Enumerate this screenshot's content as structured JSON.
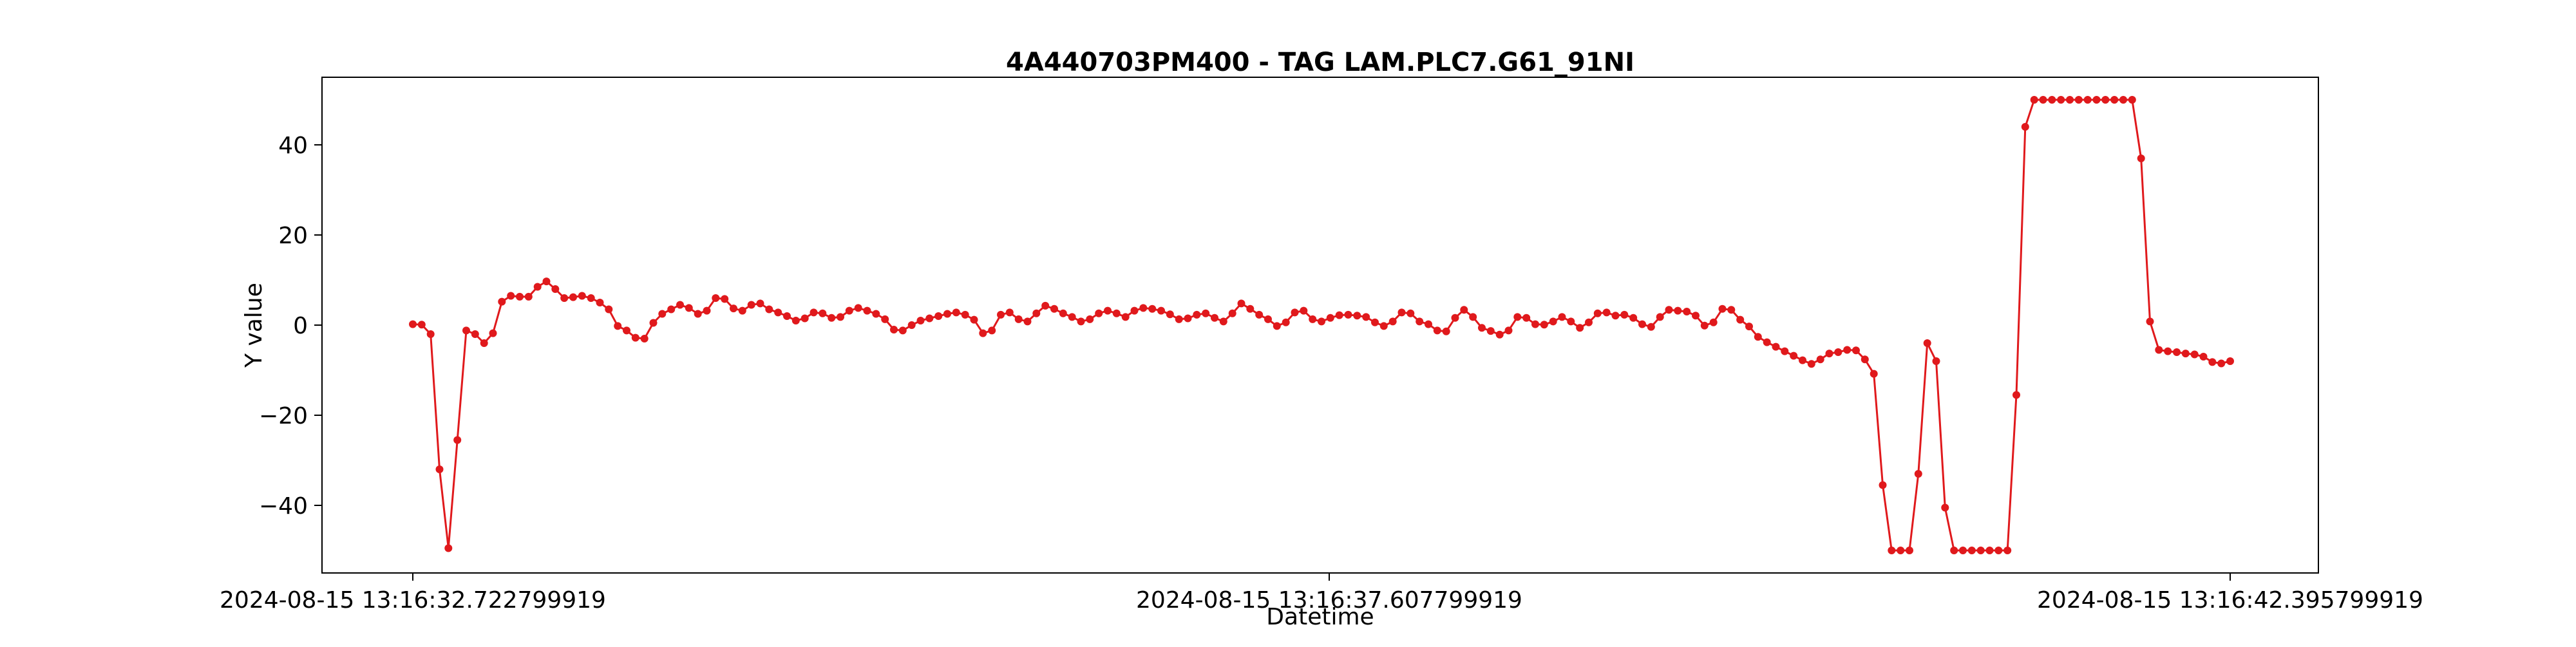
{
  "chart_data": {
    "type": "line",
    "title": "4A440703PM400 - TAG LAM.PLC7.G61_91NI",
    "xlabel": "Datetime",
    "ylabel": "Y value",
    "ylim": [
      -55,
      55
    ],
    "yticks": [
      -40,
      -20,
      0,
      20,
      40
    ],
    "xtick_labels": [
      "2024-08-15 13:16:32.722799919",
      "2024-08-15 13:16:37.607799919",
      "2024-08-15 13:16:42.395799919"
    ],
    "grid": false,
    "legend": "none",
    "series": [
      {
        "color": "#e0191c",
        "marker": "circle",
        "values": [
          0.2,
          0.1,
          -2,
          -32,
          -49.5,
          -25.5,
          -1.2,
          -2,
          -4,
          -1.8,
          5.2,
          6.5,
          6.3,
          6.3,
          8.5,
          9.7,
          8,
          6,
          6.2,
          6.5,
          6,
          5,
          3.5,
          -0.2,
          -1.2,
          -2.8,
          -3,
          0.5,
          2.5,
          3.5,
          4.5,
          3.8,
          2.5,
          3.2,
          6,
          5.8,
          3.7,
          3.2,
          4.5,
          4.8,
          3.5,
          2.8,
          2,
          1,
          1.5,
          2.8,
          2.6,
          1.6,
          1.8,
          3.2,
          3.8,
          3.2,
          2.5,
          1.3,
          -1,
          -1.2,
          0,
          1,
          1.5,
          2,
          2.5,
          2.8,
          2.3,
          1.2,
          -1.8,
          -1.2,
          2.3,
          2.8,
          1.3,
          0.8,
          2.6,
          4.3,
          3.6,
          2.6,
          1.8,
          0.8,
          1.3,
          2.6,
          3.2,
          2.6,
          1.8,
          3.2,
          3.8,
          3.6,
          3.2,
          2.4,
          1.3,
          1.5,
          2.3,
          2.6,
          1.6,
          0.8,
          2.6,
          4.8,
          3.6,
          2.3,
          1.3,
          -0.2,
          0.6,
          2.8,
          3.2,
          1.3,
          0.8,
          1.6,
          2.2,
          2.3,
          2.1,
          1.8,
          0.6,
          -0.2,
          0.8,
          2.8,
          2.6,
          0.8,
          0.2,
          -1.2,
          -1.4,
          1.6,
          3.4,
          1.8,
          -0.6,
          -1.3,
          -2.1,
          -1.2,
          1.8,
          1.6,
          0.2,
          0.1,
          0.8,
          1.8,
          0.8,
          -0.6,
          0.6,
          2.6,
          2.8,
          2.1,
          2.3,
          1.6,
          0.2,
          -0.4,
          1.8,
          3.4,
          3.2,
          3,
          2.1,
          -0.1,
          0.6,
          3.6,
          3.4,
          1.2,
          -0.3,
          -2.6,
          -3.8,
          -4.8,
          -5.8,
          -6.8,
          -7.8,
          -8.6,
          -7.6,
          -6.3,
          -6,
          -5.5,
          -5.6,
          -7.6,
          -10.8,
          -35.5,
          -50,
          -50,
          -50,
          -33,
          -4,
          -8,
          -40.5,
          -50,
          -50,
          -50,
          -50,
          -50,
          -50,
          -50,
          -15.5,
          44,
          50,
          50,
          50,
          50,
          50,
          50,
          50,
          50,
          50,
          50,
          50,
          50,
          37,
          0.8,
          -5.5,
          -5.8,
          -6,
          -6.3,
          -6.5,
          -7,
          -8.2,
          -8.5,
          -8
        ]
      }
    ]
  }
}
